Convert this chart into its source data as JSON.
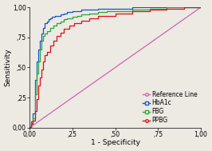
{
  "xlabel": "1 - Specificity",
  "ylabel": "Sensitivity",
  "xlim": [
    0,
    1.0
  ],
  "ylim": [
    0,
    1.0
  ],
  "xticks": [
    0.0,
    0.25,
    0.5,
    0.75,
    1.0
  ],
  "yticks": [
    0.0,
    0.25,
    0.5,
    0.75,
    1.0
  ],
  "xticklabels": [
    "0,00",
    ",25",
    ",50",
    ",75",
    "1,00"
  ],
  "yticklabels": [
    "0,00",
    ",25",
    ",50",
    ",75",
    "1,00"
  ],
  "reference_color": "#cc66aa",
  "hba1c_color": "#1155cc",
  "fbg_color": "#22aa33",
  "ppbg_color": "#dd1111",
  "background_color": "#ede9e3",
  "legend_fontsize": 5.5,
  "axis_fontsize": 6.5,
  "tick_fontsize": 5.5,
  "hba1c_x": [
    0.0,
    0.01,
    0.02,
    0.03,
    0.04,
    0.05,
    0.06,
    0.07,
    0.08,
    0.09,
    0.1,
    0.11,
    0.12,
    0.13,
    0.15,
    0.18,
    0.2,
    0.22,
    0.25,
    0.28,
    0.3,
    0.35,
    0.4,
    0.5,
    0.6,
    0.7,
    0.75,
    0.8,
    1.0
  ],
  "hba1c_y": [
    0.0,
    0.05,
    0.12,
    0.4,
    0.55,
    0.65,
    0.72,
    0.78,
    0.83,
    0.87,
    0.88,
    0.9,
    0.91,
    0.92,
    0.93,
    0.94,
    0.95,
    0.96,
    0.97,
    0.97,
    0.98,
    0.98,
    0.99,
    0.99,
    1.0,
    1.0,
    1.0,
    1.0,
    1.0
  ],
  "fbg_x": [
    0.0,
    0.01,
    0.02,
    0.03,
    0.04,
    0.05,
    0.06,
    0.07,
    0.08,
    0.09,
    0.1,
    0.12,
    0.14,
    0.16,
    0.18,
    0.2,
    0.22,
    0.25,
    0.28,
    0.3,
    0.35,
    0.4,
    0.45,
    0.5,
    0.6,
    0.7,
    0.8,
    1.0
  ],
  "fbg_y": [
    0.0,
    0.04,
    0.08,
    0.28,
    0.45,
    0.55,
    0.65,
    0.72,
    0.76,
    0.78,
    0.8,
    0.83,
    0.85,
    0.87,
    0.88,
    0.9,
    0.91,
    0.92,
    0.93,
    0.94,
    0.95,
    0.96,
    0.97,
    0.97,
    0.98,
    0.99,
    1.0,
    1.0
  ],
  "ppbg_x": [
    0.0,
    0.01,
    0.02,
    0.03,
    0.04,
    0.05,
    0.06,
    0.07,
    0.08,
    0.09,
    0.1,
    0.12,
    0.14,
    0.16,
    0.18,
    0.2,
    0.23,
    0.26,
    0.3,
    0.35,
    0.4,
    0.5,
    0.6,
    0.7,
    0.8,
    0.9,
    1.0
  ],
  "ppbg_y": [
    0.0,
    0.03,
    0.06,
    0.14,
    0.24,
    0.35,
    0.42,
    0.48,
    0.55,
    0.6,
    0.63,
    0.68,
    0.72,
    0.76,
    0.79,
    0.82,
    0.85,
    0.87,
    0.89,
    0.91,
    0.93,
    0.95,
    0.97,
    0.98,
    0.99,
    1.0,
    1.0
  ]
}
